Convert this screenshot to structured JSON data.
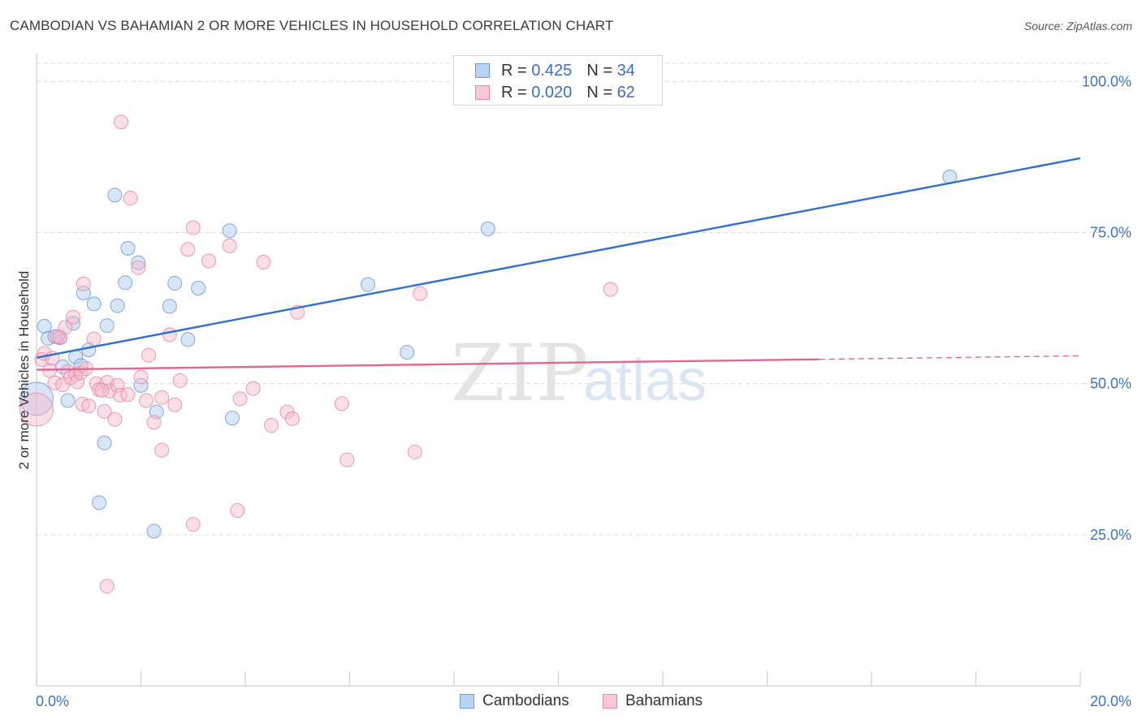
{
  "title": "CAMBODIAN VS BAHAMIAN 2 OR MORE VEHICLES IN HOUSEHOLD CORRELATION CHART",
  "source": "Source: ZipAtlas.com",
  "legend": {
    "cambodians": {
      "r_label": "R =",
      "r_value": "0.425",
      "n_label": "N =",
      "n_value": "34"
    },
    "bahamians": {
      "r_label": "R =",
      "r_value": "0.020",
      "n_label": "N =",
      "n_value": "62"
    }
  },
  "bottom_legend": {
    "cambodians": "Cambodians",
    "bahamians": "Bahamians"
  },
  "watermark": {
    "zip": "ZIP",
    "atlas": "atlas"
  },
  "colors": {
    "cambodian_fill": "#a9c8f0",
    "cambodian_stroke": "#6d9bd8",
    "cambodian_line": "#2f72cc",
    "bahamian_fill": "#f6b7c9",
    "bahamian_stroke": "#e888a6",
    "bahamian_line": "#e06890",
    "tick_label": "#3d72c6",
    "grid": "#dddddd"
  },
  "chart_data": {
    "type": "scatter",
    "title": "CAMBODIAN VS BAHAMIAN 2 OR MORE VEHICLES IN HOUSEHOLD CORRELATION CHART",
    "xlabel": "",
    "ylabel": "2 or more Vehicles in Household",
    "xlim": [
      0,
      20
    ],
    "ylim": [
      0,
      103
    ],
    "x_tick_labels": [
      {
        "value": 0,
        "label": "0.0%"
      },
      {
        "value": 20,
        "label": "20.0%"
      }
    ],
    "y_ticks": [
      {
        "value": 25,
        "label": "25.0%"
      },
      {
        "value": 50,
        "label": "50.0%"
      },
      {
        "value": 75,
        "label": "75.0%"
      },
      {
        "value": 100,
        "label": "100.0%"
      }
    ],
    "series": [
      {
        "name": "Cambodians",
        "r": 0.425,
        "n": 34,
        "trend": {
          "x": [
            0,
            20
          ],
          "y": [
            54.3,
            87.3
          ],
          "dashed_from": null
        },
        "points": [
          {
            "x": 0.0,
            "y": 47.5,
            "s": 3
          },
          {
            "x": 0.15,
            "y": 59.5,
            "s": 1
          },
          {
            "x": 0.22,
            "y": 57.5,
            "s": 1
          },
          {
            "x": 0.35,
            "y": 57.8,
            "s": 1
          },
          {
            "x": 0.45,
            "y": 57.6,
            "s": 1
          },
          {
            "x": 0.5,
            "y": 52.8,
            "s": 1
          },
          {
            "x": 0.6,
            "y": 47.2,
            "s": 1
          },
          {
            "x": 0.7,
            "y": 60.0,
            "s": 1
          },
          {
            "x": 0.75,
            "y": 54.4,
            "s": 1
          },
          {
            "x": 0.85,
            "y": 53.0,
            "s": 1
          },
          {
            "x": 0.9,
            "y": 65.0,
            "s": 1
          },
          {
            "x": 1.0,
            "y": 55.6,
            "s": 1
          },
          {
            "x": 1.1,
            "y": 63.2,
            "s": 1
          },
          {
            "x": 1.2,
            "y": 30.3,
            "s": 1
          },
          {
            "x": 1.3,
            "y": 40.2,
            "s": 1
          },
          {
            "x": 1.35,
            "y": 59.6,
            "s": 1
          },
          {
            "x": 1.5,
            "y": 81.2,
            "s": 1
          },
          {
            "x": 1.55,
            "y": 62.9,
            "s": 1
          },
          {
            "x": 1.7,
            "y": 66.7,
            "s": 1
          },
          {
            "x": 1.75,
            "y": 72.4,
            "s": 1
          },
          {
            "x": 1.95,
            "y": 70.0,
            "s": 1
          },
          {
            "x": 2.0,
            "y": 49.7,
            "s": 1
          },
          {
            "x": 2.25,
            "y": 25.6,
            "s": 1
          },
          {
            "x": 2.3,
            "y": 45.3,
            "s": 1
          },
          {
            "x": 2.55,
            "y": 62.8,
            "s": 1
          },
          {
            "x": 2.65,
            "y": 66.6,
            "s": 1
          },
          {
            "x": 2.9,
            "y": 57.3,
            "s": 1
          },
          {
            "x": 3.1,
            "y": 65.8,
            "s": 1
          },
          {
            "x": 3.7,
            "y": 75.3,
            "s": 1
          },
          {
            "x": 3.75,
            "y": 44.3,
            "s": 1
          },
          {
            "x": 6.35,
            "y": 66.4,
            "s": 1
          },
          {
            "x": 7.1,
            "y": 55.2,
            "s": 1
          },
          {
            "x": 8.65,
            "y": 75.6,
            "s": 1
          },
          {
            "x": 17.5,
            "y": 84.2,
            "s": 1
          }
        ]
      },
      {
        "name": "Bahamians",
        "r": 0.02,
        "n": 62,
        "trend": {
          "x": [
            0,
            20
          ],
          "y": [
            52.3,
            54.6
          ],
          "dashed_from": 15.0
        },
        "points": [
          {
            "x": 0.0,
            "y": 45.7,
            "s": 3
          },
          {
            "x": 0.1,
            "y": 54.0,
            "s": 1
          },
          {
            "x": 0.15,
            "y": 55.0,
            "s": 1
          },
          {
            "x": 0.25,
            "y": 52.2,
            "s": 1
          },
          {
            "x": 0.3,
            "y": 54.2,
            "s": 1
          },
          {
            "x": 0.35,
            "y": 50.1,
            "s": 1
          },
          {
            "x": 0.45,
            "y": 57.7,
            "s": 1
          },
          {
            "x": 0.5,
            "y": 49.8,
            "s": 1
          },
          {
            "x": 0.55,
            "y": 59.3,
            "s": 1
          },
          {
            "x": 0.6,
            "y": 52.0,
            "s": 1
          },
          {
            "x": 0.65,
            "y": 51.0,
            "s": 1
          },
          {
            "x": 0.7,
            "y": 61.0,
            "s": 1
          },
          {
            "x": 0.75,
            "y": 51.5,
            "s": 1
          },
          {
            "x": 0.78,
            "y": 50.3,
            "s": 1
          },
          {
            "x": 0.85,
            "y": 51.8,
            "s": 1
          },
          {
            "x": 0.88,
            "y": 46.6,
            "s": 1
          },
          {
            "x": 0.9,
            "y": 66.5,
            "s": 1
          },
          {
            "x": 0.95,
            "y": 52.5,
            "s": 1
          },
          {
            "x": 1.0,
            "y": 46.3,
            "s": 1
          },
          {
            "x": 1.1,
            "y": 57.4,
            "s": 1
          },
          {
            "x": 1.15,
            "y": 50.0,
            "s": 1
          },
          {
            "x": 1.2,
            "y": 49.0,
            "s": 1
          },
          {
            "x": 1.3,
            "y": 45.4,
            "s": 1
          },
          {
            "x": 1.35,
            "y": 50.2,
            "s": 1
          },
          {
            "x": 1.4,
            "y": 48.8,
            "s": 1
          },
          {
            "x": 1.35,
            "y": 16.5,
            "s": 1
          },
          {
            "x": 1.5,
            "y": 44.1,
            "s": 1
          },
          {
            "x": 1.55,
            "y": 49.7,
            "s": 1
          },
          {
            "x": 1.6,
            "y": 48.1,
            "s": 1
          },
          {
            "x": 1.62,
            "y": 93.3,
            "s": 1
          },
          {
            "x": 1.75,
            "y": 48.2,
            "s": 1
          },
          {
            "x": 1.8,
            "y": 80.7,
            "s": 1
          },
          {
            "x": 1.95,
            "y": 69.2,
            "s": 1
          },
          {
            "x": 2.0,
            "y": 51.1,
            "s": 1
          },
          {
            "x": 2.1,
            "y": 47.2,
            "s": 1
          },
          {
            "x": 2.15,
            "y": 54.7,
            "s": 1
          },
          {
            "x": 2.25,
            "y": 43.6,
            "s": 1
          },
          {
            "x": 2.4,
            "y": 47.7,
            "s": 1
          },
          {
            "x": 2.4,
            "y": 39.0,
            "s": 1
          },
          {
            "x": 2.55,
            "y": 58.1,
            "s": 1
          },
          {
            "x": 2.65,
            "y": 46.5,
            "s": 1
          },
          {
            "x": 2.75,
            "y": 50.5,
            "s": 1
          },
          {
            "x": 2.9,
            "y": 72.2,
            "s": 1
          },
          {
            "x": 3.0,
            "y": 75.8,
            "s": 1
          },
          {
            "x": 3.0,
            "y": 26.7,
            "s": 1
          },
          {
            "x": 3.3,
            "y": 70.3,
            "s": 1
          },
          {
            "x": 3.7,
            "y": 72.8,
            "s": 1
          },
          {
            "x": 3.85,
            "y": 29.0,
            "s": 1
          },
          {
            "x": 3.9,
            "y": 47.5,
            "s": 1
          },
          {
            "x": 4.15,
            "y": 49.2,
            "s": 1
          },
          {
            "x": 4.35,
            "y": 70.1,
            "s": 1
          },
          {
            "x": 4.5,
            "y": 43.1,
            "s": 1
          },
          {
            "x": 4.8,
            "y": 45.3,
            "s": 1
          },
          {
            "x": 4.9,
            "y": 44.2,
            "s": 1
          },
          {
            "x": 5.0,
            "y": 61.8,
            "s": 1
          },
          {
            "x": 5.85,
            "y": 46.7,
            "s": 1
          },
          {
            "x": 5.95,
            "y": 37.4,
            "s": 1
          },
          {
            "x": 7.25,
            "y": 38.7,
            "s": 1
          },
          {
            "x": 7.35,
            "y": 64.9,
            "s": 1
          },
          {
            "x": 11.0,
            "y": 65.6,
            "s": 1
          },
          {
            "x": 0.4,
            "y": 57.8,
            "s": 1
          },
          {
            "x": 1.25,
            "y": 48.9,
            "s": 1
          }
        ]
      }
    ]
  }
}
